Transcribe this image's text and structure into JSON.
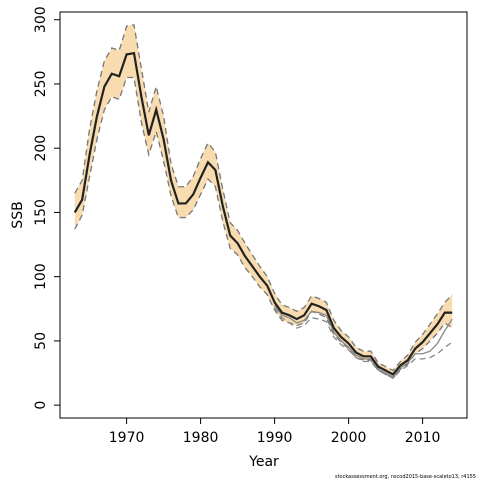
{
  "chart_data": {
    "type": "line",
    "x_label": "Year",
    "y_label": "SSB",
    "source": "stockassessment.org, nscod2015-base-scaleto13, r4155",
    "x": [
      1963,
      1964,
      1965,
      1966,
      1967,
      1968,
      1969,
      1970,
      1971,
      1972,
      1973,
      1974,
      1975,
      1976,
      1977,
      1978,
      1979,
      1980,
      1981,
      1982,
      1983,
      1984,
      1985,
      1986,
      1987,
      1988,
      1989,
      1990,
      1991,
      1992,
      1993,
      1994,
      1995,
      1996,
      1997,
      1998,
      1999,
      2000,
      2001,
      2002,
      2003,
      2004,
      2005,
      2006,
      2007,
      2008,
      2009,
      2010,
      2011,
      2012,
      2013,
      2014
    ],
    "series": [
      {
        "color": "#222222",
        "values": [
          150,
          160,
          195,
          225,
          248,
          258,
          256,
          273,
          274,
          240,
          210,
          230,
          207,
          175,
          157,
          157,
          164,
          177,
          189,
          183,
          155,
          132,
          126,
          116,
          108,
          100,
          93,
          80,
          72,
          70,
          67,
          70,
          79,
          77,
          74,
          60,
          53,
          48,
          41,
          38,
          38,
          30,
          27,
          24,
          31,
          35,
          44,
          49,
          56,
          63,
          72,
          72
        ]
      },
      {
        "color": "#777777",
        "dashed": true,
        "fill": "#f8dcb0",
        "values": [
          165,
          175,
          215,
          245,
          268,
          278,
          276,
          295,
          296,
          262,
          228,
          248,
          225,
          188,
          170,
          170,
          178,
          192,
          204,
          197,
          168,
          142,
          136,
          126,
          117,
          108,
          100,
          87,
          78,
          76,
          73,
          76,
          85,
          83,
          80,
          66,
          58,
          53,
          45,
          42,
          42,
          33,
          30,
          27,
          34,
          39,
          49,
          55,
          63,
          71,
          80,
          86
        ]
      },
      {
        "color": "#777777",
        "dashed": true,
        "values": [
          137,
          148,
          178,
          207,
          230,
          240,
          238,
          255,
          255,
          220,
          195,
          213,
          190,
          163,
          146,
          146,
          152,
          164,
          176,
          170,
          143,
          122,
          117,
          107,
          100,
          92,
          86,
          74,
          66,
          64,
          62,
          64,
          73,
          71,
          68,
          55,
          49,
          44,
          37,
          35,
          35,
          27,
          24,
          21,
          28,
          32,
          40,
          44,
          50,
          56,
          64,
          60
        ]
      },
      {
        "color": "#888888",
        "values": [
          null,
          null,
          null,
          null,
          null,
          null,
          null,
          null,
          null,
          null,
          null,
          null,
          null,
          null,
          null,
          null,
          null,
          null,
          null,
          null,
          null,
          null,
          null,
          null,
          null,
          null,
          null,
          78,
          70,
          68,
          64,
          66,
          73,
          72,
          70,
          57,
          50,
          45,
          39,
          36,
          36,
          28,
          25,
          22,
          29,
          33,
          40,
          40,
          42,
          48,
          58,
          67
        ]
      },
      {
        "color": "#888888",
        "dashed": true,
        "values": [
          null,
          null,
          null,
          null,
          null,
          null,
          null,
          null,
          null,
          null,
          null,
          null,
          null,
          null,
          null,
          null,
          null,
          null,
          null,
          null,
          null,
          null,
          null,
          null,
          null,
          null,
          null,
          76,
          68,
          64,
          60,
          62,
          68,
          67,
          65,
          53,
          47,
          43,
          37,
          34,
          34,
          27,
          24,
          21,
          27,
          31,
          36,
          36,
          37,
          40,
          45,
          49
        ]
      }
    ],
    "xlim": [
      1961,
      2016
    ],
    "ylim": [
      -10,
      306
    ],
    "xticks": [
      1970,
      1980,
      1990,
      2000,
      2010
    ],
    "yticks": [
      0,
      50,
      100,
      150,
      200,
      250,
      300
    ]
  }
}
